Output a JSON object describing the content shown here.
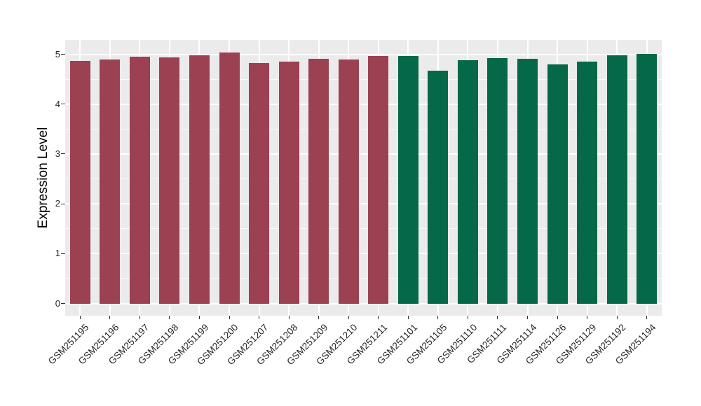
{
  "figure": {
    "background": "#FFFFFF"
  },
  "chart_data": {
    "type": "bar",
    "title": "",
    "xlabel": "",
    "ylabel": "Expression Level",
    "ylim": [
      0,
      5.29
    ],
    "yticks": [
      0,
      1,
      2,
      3,
      4,
      5
    ],
    "minor_gridlines": [
      0.5,
      1.5,
      2.5,
      3.5,
      4.5
    ],
    "grid": "white major and minor horizontal lines plus vertical line per category on gray panel",
    "legend_position": "none",
    "panel_background": "#EBEBEB",
    "gridline_color": "#FFFFFF",
    "axis_text_color": "#262626",
    "bar_groups": {
      "red": {
        "color": "#9C4152"
      },
      "green": {
        "color": "#056849"
      }
    },
    "bars": [
      {
        "label": "GSM251195",
        "value": 4.87,
        "group": "red"
      },
      {
        "label": "GSM251196",
        "value": 4.9,
        "group": "red"
      },
      {
        "label": "GSM251197",
        "value": 4.95,
        "group": "red"
      },
      {
        "label": "GSM251198",
        "value": 4.93,
        "group": "red"
      },
      {
        "label": "GSM251199",
        "value": 4.98,
        "group": "red"
      },
      {
        "label": "GSM251200",
        "value": 5.03,
        "group": "red"
      },
      {
        "label": "GSM251207",
        "value": 4.82,
        "group": "red"
      },
      {
        "label": "GSM251208",
        "value": 4.85,
        "group": "red"
      },
      {
        "label": "GSM251209",
        "value": 4.91,
        "group": "red"
      },
      {
        "label": "GSM251210",
        "value": 4.89,
        "group": "red"
      },
      {
        "label": "GSM251211",
        "value": 4.96,
        "group": "red"
      },
      {
        "label": "GSM251101",
        "value": 4.96,
        "group": "green"
      },
      {
        "label": "GSM251105",
        "value": 4.67,
        "group": "green"
      },
      {
        "label": "GSM251110",
        "value": 4.88,
        "group": "green"
      },
      {
        "label": "GSM251111",
        "value": 4.92,
        "group": "green"
      },
      {
        "label": "GSM251114",
        "value": 4.91,
        "group": "green"
      },
      {
        "label": "GSM251126",
        "value": 4.8,
        "group": "green"
      },
      {
        "label": "GSM251129",
        "value": 4.85,
        "group": "green"
      },
      {
        "label": "GSM251192",
        "value": 4.98,
        "group": "green"
      },
      {
        "label": "GSM251194",
        "value": 5.01,
        "group": "green"
      }
    ]
  }
}
